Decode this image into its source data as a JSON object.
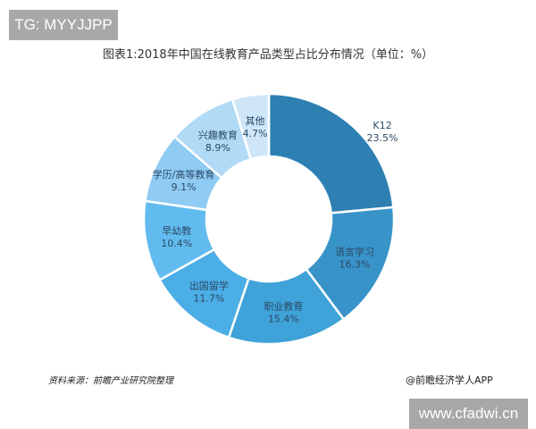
{
  "overlay": {
    "top_left_badge": "TG: MYYJJPP",
    "bottom_right_badge": "www.cfadwi.cn"
  },
  "footer": {
    "source": "资料来源：前瞻产业研究院整理",
    "credit": "@前瞻经济学人APP"
  },
  "chart_data": {
    "type": "pie",
    "variant": "donut",
    "title": "图表1:2018年中国在线教育产品类型占比分布情况（单位：%）",
    "unit": "%",
    "start_angle": "12 o'clock, clockwise",
    "categories": [
      "K12",
      "语言学习",
      "职业教育",
      "出国留学",
      "早幼教",
      "学历/高等教育",
      "兴趣教育",
      "其他"
    ],
    "values": [
      23.5,
      16.3,
      15.4,
      11.7,
      10.4,
      9.1,
      8.9,
      4.7
    ],
    "labels": [
      "23.5%",
      "16.3%",
      "15.4%",
      "11.7%",
      "10.4%",
      "9.1%",
      "8.9%",
      "4.7%"
    ],
    "colors": [
      "#2e7fb2",
      "#3893c8",
      "#3fa2d8",
      "#4caee6",
      "#62bbef",
      "#8fcbf3",
      "#b1daf6",
      "#cfe6f8"
    ],
    "legend": "none (labels on segments)"
  }
}
